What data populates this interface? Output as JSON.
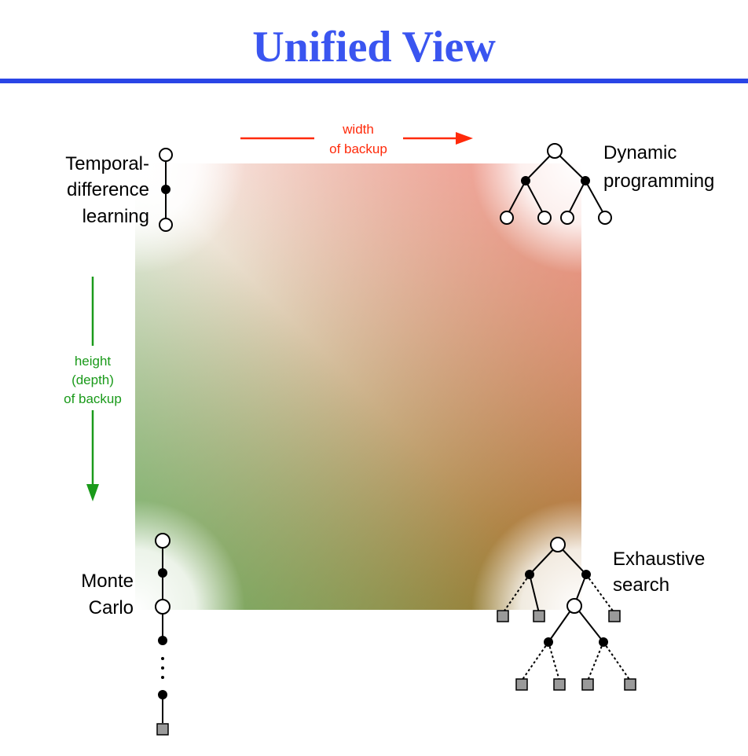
{
  "title": "Unified View",
  "colors": {
    "title": "#3a55f0",
    "rule": "#2a45e6",
    "width_arrow": "#ff2a0a",
    "height_arrow": "#1a9a1a",
    "corner_tl": "#ffffff",
    "corner_tr": "#ff9e9e",
    "corner_bl": "#a6d8a6",
    "corner_br": "#a4661e",
    "center": "#a88a78",
    "leaf": "#9a9a9a"
  },
  "axes": {
    "width_label_line1": "width",
    "width_label_line2": "of backup",
    "height_label_line1": "height",
    "height_label_line2": "(depth)",
    "height_label_line3": "of backup"
  },
  "corners": {
    "td": {
      "line1": "Temporal-",
      "line2": "difference",
      "line3": "learning"
    },
    "dp": {
      "line1": "Dynamic",
      "line2": "programming"
    },
    "mc": {
      "line1": "Monte",
      "line2": "Carlo"
    },
    "es": {
      "line1": "Exhaustive",
      "line2": "search"
    }
  },
  "icons": {
    "width_arrow": "right-arrow-icon",
    "height_arrow": "down-arrow-icon"
  }
}
